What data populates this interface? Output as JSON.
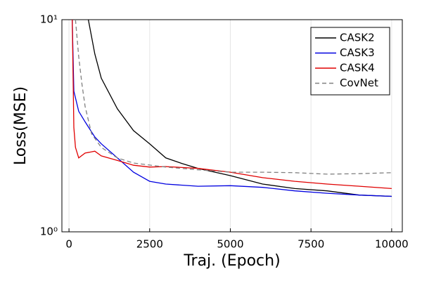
{
  "chart_data": {
    "type": "line",
    "xlabel": "Traj. (Epoch)",
    "ylabel": "Loss(MSE)",
    "xlim": [
      -220,
      10330
    ],
    "ylim": [
      1,
      10
    ],
    "ylog": true,
    "xticks": [
      0,
      2500,
      5000,
      7500,
      10000
    ],
    "yticks": [
      {
        "value": 1,
        "label": "10⁰"
      },
      {
        "value": 10,
        "label": "10¹"
      }
    ],
    "grid": true,
    "legend": "top-right",
    "series": [
      {
        "name": "CASK2",
        "color": "#000000",
        "dash": "solid",
        "x": [
          600,
          800,
          1000,
          1500,
          2000,
          2500,
          3000,
          3500,
          4000,
          5000,
          6000,
          7000,
          8000,
          9000,
          10000
        ],
        "values": [
          10,
          6.9,
          5.3,
          3.8,
          3.0,
          2.6,
          2.23,
          2.1,
          1.99,
          1.84,
          1.68,
          1.6,
          1.56,
          1.49,
          1.47
        ]
      },
      {
        "name": "CASK3",
        "color": "#0000e0",
        "dash": "solid",
        "x": [
          100,
          150,
          300,
          500,
          800,
          1000,
          1500,
          2000,
          2500,
          3000,
          4000,
          5000,
          6000,
          7000,
          8000,
          9000,
          10000
        ],
        "values": [
          10,
          4.6,
          3.7,
          3.3,
          2.8,
          2.6,
          2.23,
          1.91,
          1.73,
          1.68,
          1.64,
          1.65,
          1.62,
          1.56,
          1.52,
          1.49,
          1.47
        ]
      },
      {
        "name": "CASK4",
        "color": "#e00000",
        "dash": "solid",
        "x": [
          100,
          150,
          200,
          300,
          500,
          800,
          1000,
          1500,
          2000,
          2500,
          3000,
          4000,
          5000,
          6000,
          7000,
          8000,
          9000,
          10000
        ],
        "values": [
          10,
          3.1,
          2.5,
          2.23,
          2.35,
          2.4,
          2.28,
          2.17,
          2.06,
          2.02,
          2.03,
          1.99,
          1.91,
          1.8,
          1.73,
          1.68,
          1.64,
          1.6
        ]
      },
      {
        "name": "CovNet",
        "color": "#808080",
        "dash": "dashed",
        "x": [
          200,
          300,
          400,
          500,
          700,
          1000,
          1500,
          2000,
          3000,
          4000,
          5000,
          6000,
          7000,
          8000,
          9000,
          10000
        ],
        "values": [
          10,
          6.7,
          5.0,
          3.9,
          2.9,
          2.5,
          2.23,
          2.11,
          2.02,
          1.96,
          1.91,
          1.91,
          1.9,
          1.87,
          1.88,
          1.9
        ]
      }
    ]
  }
}
